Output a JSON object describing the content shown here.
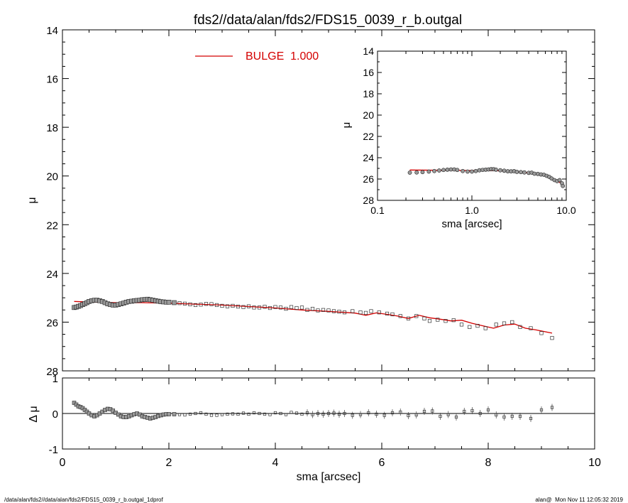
{
  "title": "fds2//data/alan/fds2/FDS15_0039_r_b.outgal",
  "footer_left": "/data/alan/fds2//data/alan/fds2/FDS15_0039_r_b.outgal_1dprof",
  "footer_right": "alan@  Mon Nov 11 12:05:32 2019",
  "colors": {
    "model": "#d40000",
    "data": "#9a9a9a",
    "axes": "#000000"
  },
  "chart_data": [
    {
      "type": "scatter",
      "panel": "main",
      "title": "fds2//data/alan/fds2/FDS15_0039_r_b.outgal",
      "xlabel": "",
      "ylabel": "μ",
      "xlim": [
        0,
        10
      ],
      "ylim": [
        28,
        14
      ],
      "y_inverted": true,
      "x_ticks": [
        0,
        2,
        4,
        6,
        8,
        10
      ],
      "x_tick_labels": [
        "",
        "",
        "",
        "",
        "",
        ""
      ],
      "y_ticks": [
        14,
        16,
        18,
        20,
        22,
        24,
        26,
        28
      ],
      "y_tick_labels": [
        "14",
        "16",
        "18",
        "20",
        "22",
        "24",
        "26",
        "28"
      ],
      "legend": {
        "position": "top",
        "entries": [
          {
            "name": "BULGE  1.000",
            "color": "#d40000",
            "style": "line"
          }
        ]
      },
      "series": [
        {
          "name": "data",
          "marker": "square",
          "x": [
            0.22,
            0.26,
            0.3,
            0.34,
            0.38,
            0.42,
            0.46,
            0.5,
            0.55,
            0.6,
            0.65,
            0.7,
            0.75,
            0.8,
            0.85,
            0.9,
            0.95,
            1.0,
            1.05,
            1.1,
            1.15,
            1.2,
            1.25,
            1.3,
            1.35,
            1.4,
            1.45,
            1.5,
            1.55,
            1.6,
            1.65,
            1.7,
            1.75,
            1.8,
            1.85,
            1.9,
            1.95,
            2.0,
            2.1,
            2.2,
            2.3,
            2.4,
            2.5,
            2.6,
            2.7,
            2.8,
            2.9,
            3.0,
            3.1,
            3.2,
            3.3,
            3.4,
            3.5,
            3.6,
            3.7,
            3.8,
            3.9,
            4.0,
            4.1,
            4.2,
            4.3,
            4.4,
            4.5,
            4.6,
            4.7,
            4.8,
            4.9,
            5.0,
            5.1,
            5.2,
            5.3,
            5.45,
            5.6,
            5.7,
            5.8,
            5.95,
            6.1,
            6.2,
            6.35,
            6.5,
            6.65,
            6.8,
            6.9,
            7.05,
            7.2,
            7.35,
            7.5,
            7.65,
            7.8,
            7.95,
            8.15,
            8.3,
            8.45,
            8.6,
            8.8,
            9.0,
            9.2
          ],
          "y": [
            25.4,
            25.38,
            25.35,
            25.32,
            25.28,
            25.24,
            25.2,
            25.15,
            25.12,
            25.1,
            25.1,
            25.12,
            25.15,
            25.2,
            25.25,
            25.28,
            25.3,
            25.3,
            25.28,
            25.25,
            25.22,
            25.18,
            25.15,
            25.14,
            25.12,
            25.11,
            25.1,
            25.08,
            25.07,
            25.06,
            25.08,
            25.1,
            25.12,
            25.14,
            25.16,
            25.17,
            25.18,
            25.18,
            25.2,
            25.22,
            25.24,
            25.27,
            25.3,
            25.28,
            25.25,
            25.26,
            25.3,
            25.33,
            25.35,
            25.33,
            25.36,
            25.38,
            25.35,
            25.4,
            25.4,
            25.37,
            25.42,
            25.38,
            25.4,
            25.45,
            25.38,
            25.42,
            25.4,
            25.5,
            25.45,
            25.52,
            25.5,
            25.52,
            25.55,
            25.57,
            25.6,
            25.55,
            25.6,
            25.62,
            25.55,
            25.6,
            25.65,
            25.68,
            25.75,
            25.85,
            25.75,
            25.85,
            25.95,
            25.9,
            25.95,
            25.92,
            26.1,
            26.2,
            26.15,
            26.25,
            26.1,
            26.05,
            26.0,
            26.2,
            26.25,
            26.45,
            26.65
          ]
        },
        {
          "name": "BULGE  1.000",
          "style": "line",
          "x": [
            0.22,
            0.6,
            1.0,
            1.5,
            2.0,
            2.5,
            3.0,
            3.5,
            4.0,
            4.5,
            5.0,
            5.5,
            5.7,
            5.9,
            6.1,
            6.3,
            6.5,
            6.7,
            6.9,
            7.1,
            7.3,
            7.5,
            7.7,
            7.9,
            8.1,
            8.3,
            8.5,
            8.7,
            8.9,
            9.2
          ],
          "y": [
            25.15,
            25.18,
            25.2,
            25.2,
            25.22,
            25.26,
            25.3,
            25.36,
            25.42,
            25.5,
            25.56,
            25.63,
            25.72,
            25.62,
            25.68,
            25.75,
            25.85,
            25.72,
            25.82,
            25.88,
            25.95,
            25.92,
            26.05,
            26.15,
            26.25,
            26.12,
            26.08,
            26.25,
            26.32,
            26.45
          ]
        }
      ]
    },
    {
      "type": "scatter",
      "panel": "inset",
      "xlabel": "sma [arcsec]",
      "ylabel": "μ",
      "x_scale": "log",
      "xlim": [
        0.1,
        10.0
      ],
      "ylim": [
        28,
        14
      ],
      "y_inverted": true,
      "x_ticks": [
        0.1,
        1.0,
        10.0
      ],
      "x_tick_labels": [
        "0.1",
        "1.0",
        "10.0"
      ],
      "y_ticks": [
        14,
        16,
        18,
        20,
        22,
        24,
        26,
        28
      ],
      "y_tick_labels": [
        "14",
        "16",
        "18",
        "20",
        "22",
        "24",
        "26",
        "28"
      ],
      "series": [
        {
          "name": "data",
          "marker": "circle",
          "x": [
            0.22,
            0.26,
            0.3,
            0.35,
            0.4,
            0.45,
            0.5,
            0.55,
            0.6,
            0.65,
            0.7,
            0.8,
            0.9,
            1.0,
            1.1,
            1.2,
            1.3,
            1.4,
            1.5,
            1.6,
            1.7,
            1.8,
            2.0,
            2.2,
            2.4,
            2.6,
            2.8,
            3.0,
            3.3,
            3.6,
            4.0,
            4.3,
            4.6,
            5.0,
            5.4,
            5.8,
            6.2,
            6.6,
            7.0,
            7.5,
            8.0,
            8.5,
            9.0,
            9.2
          ],
          "y": [
            25.4,
            25.38,
            25.35,
            25.3,
            25.25,
            25.2,
            25.15,
            25.12,
            25.1,
            25.1,
            25.15,
            25.25,
            25.3,
            25.3,
            25.25,
            25.18,
            25.14,
            25.12,
            25.1,
            25.07,
            25.08,
            25.12,
            25.18,
            25.22,
            25.27,
            25.28,
            25.26,
            25.33,
            25.35,
            25.38,
            25.42,
            25.4,
            25.5,
            25.52,
            25.57,
            25.6,
            25.7,
            25.8,
            25.95,
            26.1,
            26.2,
            26.1,
            26.4,
            26.65
          ]
        },
        {
          "name": "BULGE  1.000",
          "style": "line",
          "x": [
            0.22,
            0.5,
            1.0,
            2.0,
            3.0,
            4.0,
            5.0,
            6.0,
            7.0,
            8.0,
            9.2
          ],
          "y": [
            25.15,
            25.18,
            25.2,
            25.22,
            25.3,
            25.42,
            25.56,
            25.68,
            25.88,
            26.2,
            26.45
          ]
        }
      ]
    },
    {
      "type": "scatter",
      "panel": "residual",
      "xlabel": "sma [arcsec]",
      "ylabel": "Δ μ",
      "xlim": [
        0,
        10
      ],
      "ylim": [
        -1.0,
        1.0
      ],
      "x_ticks": [
        0,
        2,
        4,
        6,
        8,
        10
      ],
      "x_tick_labels": [
        "0",
        "2",
        "4",
        "6",
        "8",
        "10"
      ],
      "y_ticks": [
        -1,
        0,
        1
      ],
      "y_tick_labels": [
        "-1",
        "0",
        "1"
      ],
      "zero_line": true,
      "series": [
        {
          "name": "residual",
          "marker": "square",
          "x": [
            0.22,
            0.26,
            0.3,
            0.34,
            0.38,
            0.42,
            0.46,
            0.5,
            0.55,
            0.6,
            0.65,
            0.7,
            0.75,
            0.8,
            0.85,
            0.9,
            0.95,
            1.0,
            1.05,
            1.1,
            1.15,
            1.2,
            1.25,
            1.3,
            1.35,
            1.4,
            1.45,
            1.5,
            1.55,
            1.6,
            1.65,
            1.7,
            1.75,
            1.8,
            1.85,
            1.9,
            1.95,
            2.0,
            2.1,
            2.2,
            2.3,
            2.4,
            2.5,
            2.6,
            2.7,
            2.8,
            2.9,
            3.0,
            3.1,
            3.2,
            3.3,
            3.4,
            3.5,
            3.6,
            3.7,
            3.8,
            3.9,
            4.0,
            4.1,
            4.2,
            4.3,
            4.4,
            4.5,
            4.6,
            4.7,
            4.8,
            4.9,
            5.0,
            5.1,
            5.2,
            5.3,
            5.45,
            5.6,
            5.75,
            5.9,
            6.05,
            6.2,
            6.35,
            6.5,
            6.65,
            6.8,
            6.95,
            7.1,
            7.25,
            7.4,
            7.55,
            7.7,
            7.85,
            8.0,
            8.15,
            8.3,
            8.45,
            8.6,
            8.8,
            9.0,
            9.2
          ],
          "y": [
            0.3,
            0.25,
            0.2,
            0.18,
            0.15,
            0.1,
            0.05,
            0.0,
            -0.05,
            -0.08,
            -0.05,
            0.0,
            0.05,
            0.1,
            0.13,
            0.12,
            0.08,
            0.02,
            -0.03,
            -0.08,
            -0.1,
            -0.1,
            -0.08,
            -0.05,
            -0.02,
            0.0,
            -0.03,
            -0.08,
            -0.1,
            -0.12,
            -0.14,
            -0.12,
            -0.1,
            -0.07,
            -0.05,
            -0.03,
            -0.02,
            -0.02,
            -0.02,
            -0.03,
            -0.04,
            -0.02,
            0.0,
            0.02,
            -0.02,
            -0.05,
            -0.05,
            -0.03,
            -0.02,
            -0.01,
            -0.02,
            0.01,
            -0.02,
            0.02,
            0.0,
            -0.02,
            -0.03,
            0.02,
            0.0,
            -0.03,
            0.03,
            0.01,
            -0.02,
            0.02,
            -0.03,
            0.0,
            -0.02,
            0.0,
            0.01,
            -0.02,
            0.0,
            -0.05,
            -0.03,
            0.02,
            -0.02,
            -0.05,
            0.02,
            0.04,
            -0.06,
            -0.04,
            0.06,
            0.07,
            -0.08,
            -0.03,
            -0.1,
            0.06,
            0.08,
            0.0,
            0.1,
            -0.04,
            -0.1,
            -0.08,
            -0.08,
            -0.14,
            0.1,
            0.17
          ]
        }
      ]
    }
  ]
}
